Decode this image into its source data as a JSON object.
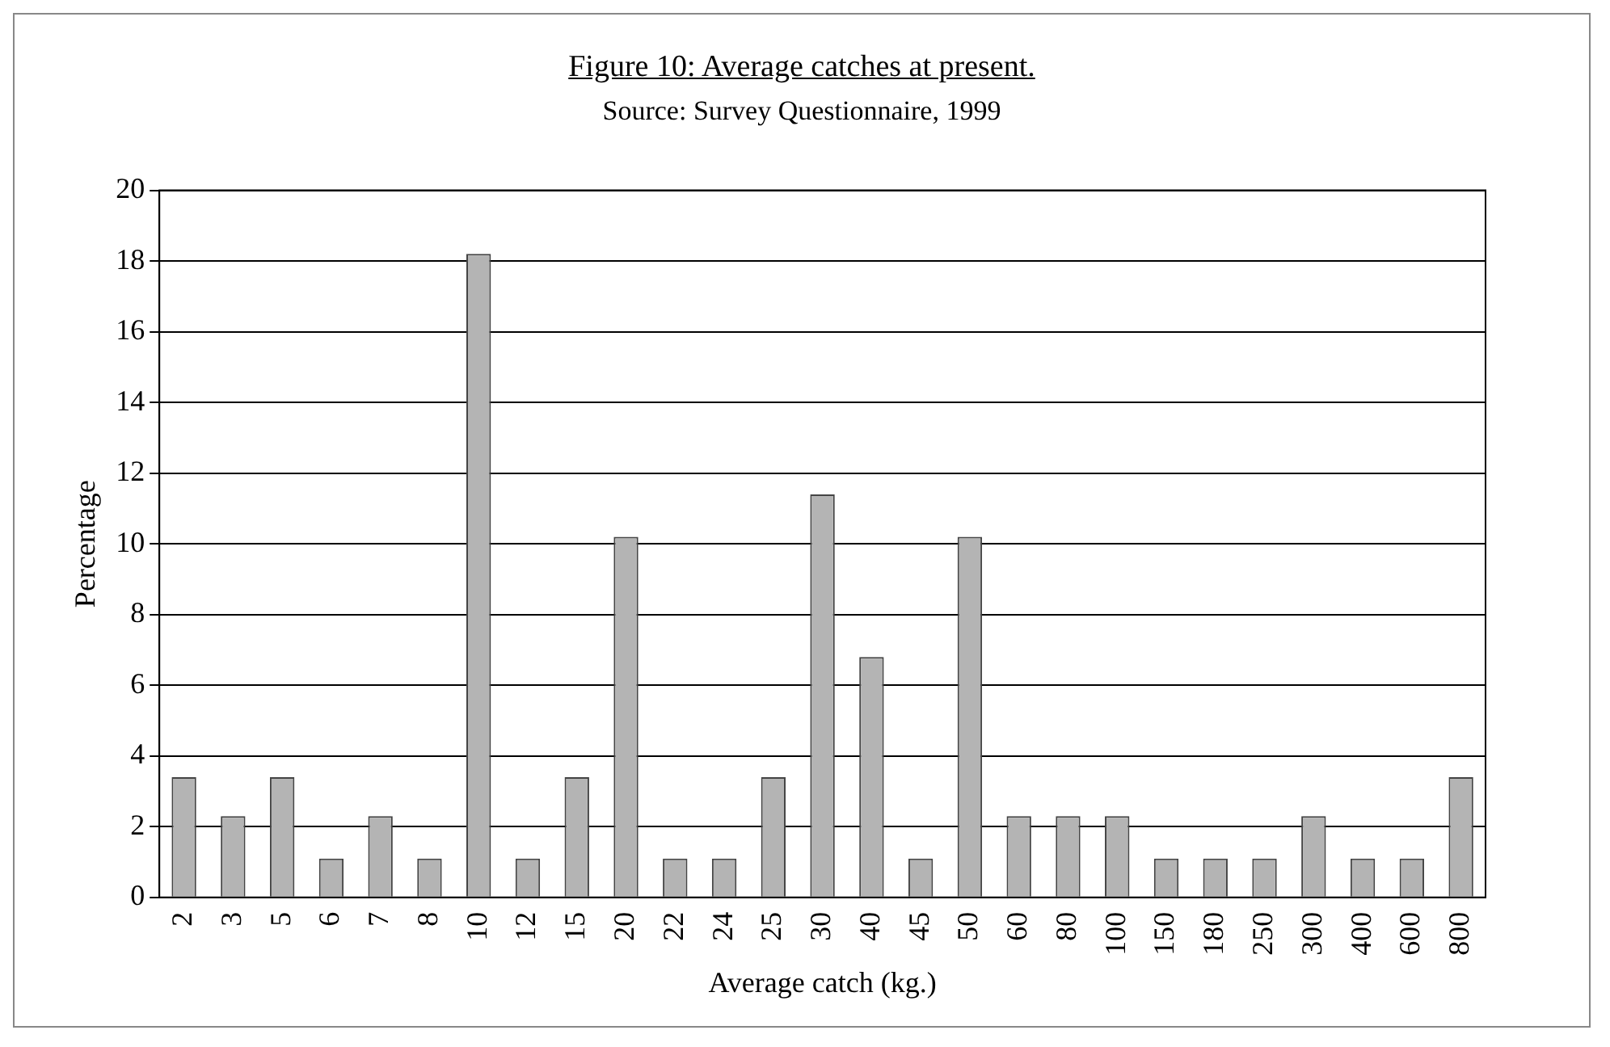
{
  "chart_data": {
    "type": "bar",
    "title": "Figure 10: Average catches at present.",
    "subtitle": "Source: Survey Questionnaire, 1999",
    "xlabel": "Average catch (kg.)",
    "ylabel": "Percentage",
    "categories": [
      "2",
      "3",
      "5",
      "6",
      "7",
      "8",
      "10",
      "12",
      "15",
      "20",
      "22",
      "24",
      "25",
      "30",
      "40",
      "45",
      "50",
      "60",
      "80",
      "100",
      "150",
      "180",
      "250",
      "300",
      "400",
      "600",
      "800"
    ],
    "values": [
      3.4,
      2.3,
      3.4,
      1.1,
      2.3,
      1.1,
      18.2,
      1.1,
      3.4,
      10.2,
      1.1,
      1.1,
      3.4,
      11.4,
      6.8,
      1.1,
      10.2,
      2.3,
      2.3,
      2.3,
      1.1,
      1.1,
      1.1,
      2.3,
      1.1,
      1.1,
      3.4
    ],
    "color": "#b4b4b4",
    "ylim": [
      0,
      20
    ],
    "yticks": [
      0,
      2,
      4,
      6,
      8,
      10,
      12,
      14,
      16,
      18,
      20
    ],
    "grid": "y",
    "legend": false
  }
}
